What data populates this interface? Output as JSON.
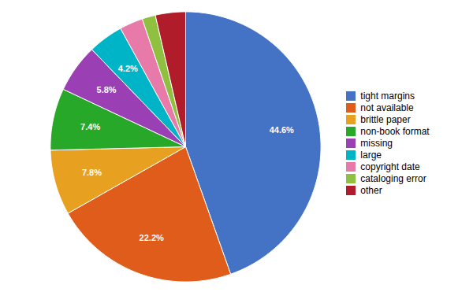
{
  "chart_data": {
    "type": "pie",
    "categories": [
      "tight margins",
      "not available",
      "brittle paper",
      "non-book format",
      "missing",
      "large",
      "copyright date",
      "cataloging error",
      "other"
    ],
    "values": [
      44.6,
      22.2,
      7.8,
      7.4,
      5.8,
      4.2,
      2.8,
      1.6,
      3.6
    ],
    "value_labels": [
      "44.6%",
      "22.2%",
      "7.8%",
      "7.4%",
      "5.8%",
      "4.2%",
      null,
      null,
      null
    ],
    "colors": [
      "#4472c4",
      "#e05c1a",
      "#e8a020",
      "#28a828",
      "#9b3fb5",
      "#00b4c8",
      "#e87aaa",
      "#90c040",
      "#b01c2a"
    ],
    "data_labels": true,
    "legend": "right"
  }
}
